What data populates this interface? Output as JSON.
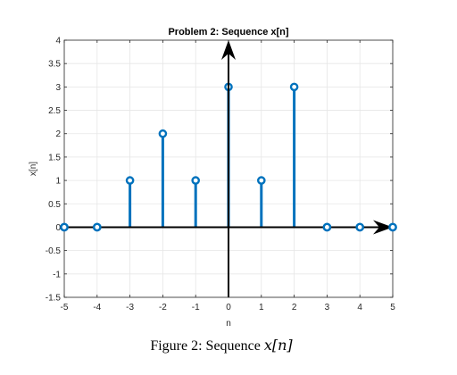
{
  "chart_data": {
    "type": "stem",
    "title": "Problem 2: Sequence x[n]",
    "xlabel": "n",
    "ylabel": "x[n]",
    "xlim": [
      -5,
      5
    ],
    "ylim": [
      -1.5,
      4
    ],
    "xticks": [
      "-5",
      "-4",
      "-3",
      "-2",
      "-1",
      "0",
      "1",
      "2",
      "3",
      "4",
      "5"
    ],
    "yticks": [
      "-1.5",
      "-1",
      "-0.5",
      "0",
      "0.5",
      "1",
      "1.5",
      "2",
      "2.5",
      "3",
      "3.5",
      "4"
    ],
    "grid": true,
    "x": [
      -5,
      -4,
      -3,
      -2,
      -1,
      0,
      1,
      2,
      3,
      4,
      5
    ],
    "values": [
      0,
      0,
      1,
      2,
      1,
      3,
      1,
      3,
      0,
      0,
      0
    ],
    "colors": {
      "stem": "#0072BD",
      "axes_arrows": "#000000",
      "grid": "#e6e6e6"
    }
  },
  "caption": {
    "prefix": "Figure 2: Sequence ",
    "variable": "x[n]"
  }
}
